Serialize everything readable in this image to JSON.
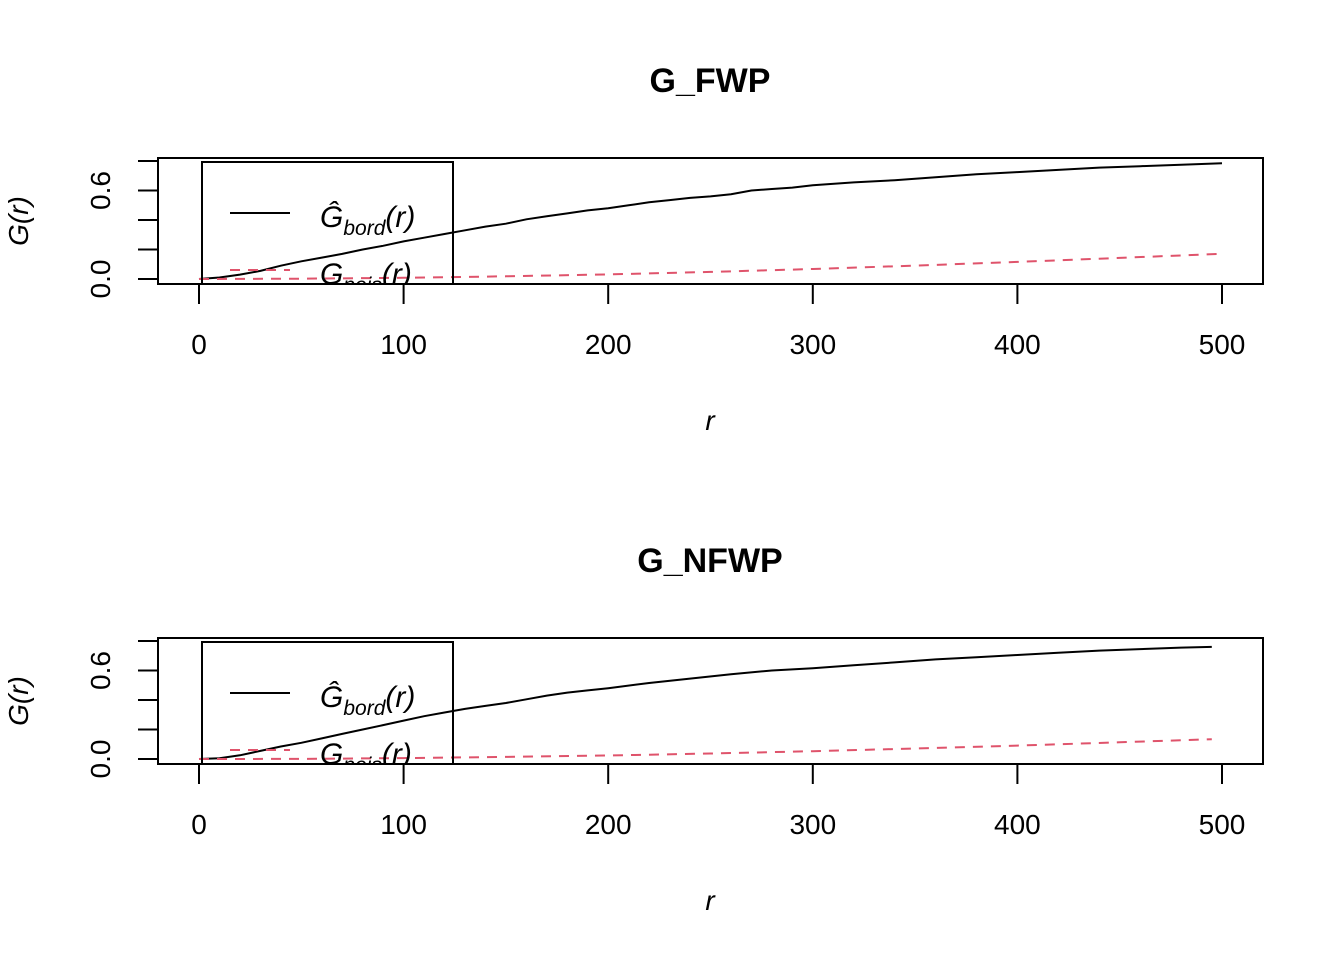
{
  "chart_data": [
    {
      "type": "line",
      "title": "G_FWP",
      "xlabel": "r",
      "ylabel": "G(r)",
      "xlim": [
        0,
        500
      ],
      "ylim": [
        0,
        0.8
      ],
      "x_ticks": [
        "0",
        "100",
        "200",
        "300",
        "400",
        "500"
      ],
      "y_ticks": [
        "0.0",
        "0.6"
      ],
      "grid": false,
      "legend_position": "top-left",
      "series": [
        {
          "name": "Ĝbord(r)",
          "label_base": "Ĝ",
          "label_sub": "bord",
          "label_arg": "(r)",
          "color": "#000000",
          "dash": "solid",
          "x": [
            0,
            10,
            20,
            30,
            40,
            50,
            60,
            70,
            80,
            90,
            100,
            110,
            120,
            130,
            140,
            150,
            160,
            170,
            180,
            190,
            200,
            210,
            220,
            230,
            240,
            250,
            260,
            270,
            280,
            290,
            300,
            320,
            340,
            360,
            380,
            400,
            420,
            440,
            460,
            480,
            500
          ],
          "y": [
            0,
            0.01,
            0.03,
            0.055,
            0.09,
            0.12,
            0.145,
            0.17,
            0.2,
            0.225,
            0.255,
            0.28,
            0.305,
            0.33,
            0.355,
            0.375,
            0.405,
            0.425,
            0.445,
            0.465,
            0.48,
            0.5,
            0.52,
            0.535,
            0.55,
            0.56,
            0.575,
            0.6,
            0.61,
            0.62,
            0.635,
            0.655,
            0.67,
            0.69,
            0.71,
            0.725,
            0.74,
            0.755,
            0.765,
            0.775,
            0.785
          ]
        },
        {
          "name": "Gpois(r)",
          "label_base": "G",
          "label_sub": "pois",
          "label_arg": "(r)",
          "color": "#DF536B",
          "dash": "dashed",
          "x": [
            0,
            50,
            100,
            150,
            200,
            250,
            300,
            350,
            400,
            450,
            500
          ],
          "y": [
            0,
            0.002,
            0.008,
            0.018,
            0.031,
            0.048,
            0.068,
            0.091,
            0.116,
            0.143,
            0.171
          ]
        }
      ]
    },
    {
      "type": "line",
      "title": "G_NFWP",
      "xlabel": "r",
      "ylabel": "G(r)",
      "xlim": [
        0,
        500
      ],
      "ylim": [
        0,
        0.8
      ],
      "x_ticks": [
        "0",
        "100",
        "200",
        "300",
        "400",
        "500"
      ],
      "y_ticks": [
        "0.0",
        "0.6"
      ],
      "grid": false,
      "legend_position": "top-left",
      "series": [
        {
          "name": "Ĝbord(r)",
          "label_base": "Ĝ",
          "label_sub": "bord",
          "label_arg": "(r)",
          "color": "#000000",
          "dash": "solid",
          "x": [
            0,
            10,
            20,
            30,
            40,
            50,
            60,
            70,
            80,
            90,
            100,
            110,
            120,
            130,
            140,
            150,
            160,
            170,
            180,
            190,
            200,
            220,
            240,
            260,
            280,
            300,
            320,
            340,
            360,
            380,
            400,
            420,
            440,
            460,
            480,
            495
          ],
          "y": [
            0,
            0.005,
            0.025,
            0.055,
            0.085,
            0.11,
            0.14,
            0.17,
            0.2,
            0.23,
            0.26,
            0.29,
            0.315,
            0.34,
            0.36,
            0.38,
            0.405,
            0.43,
            0.45,
            0.465,
            0.48,
            0.515,
            0.545,
            0.575,
            0.6,
            0.615,
            0.635,
            0.655,
            0.675,
            0.69,
            0.705,
            0.72,
            0.735,
            0.745,
            0.755,
            0.76
          ]
        },
        {
          "name": "Gpois(r)",
          "label_base": "G",
          "label_sub": "pois",
          "label_arg": "(r)",
          "color": "#DF536B",
          "dash": "dashed",
          "x": [
            0,
            50,
            100,
            150,
            200,
            250,
            300,
            350,
            400,
            450,
            495
          ],
          "y": [
            0,
            0.001,
            0.006,
            0.014,
            0.024,
            0.037,
            0.053,
            0.071,
            0.091,
            0.113,
            0.134
          ]
        }
      ]
    }
  ]
}
